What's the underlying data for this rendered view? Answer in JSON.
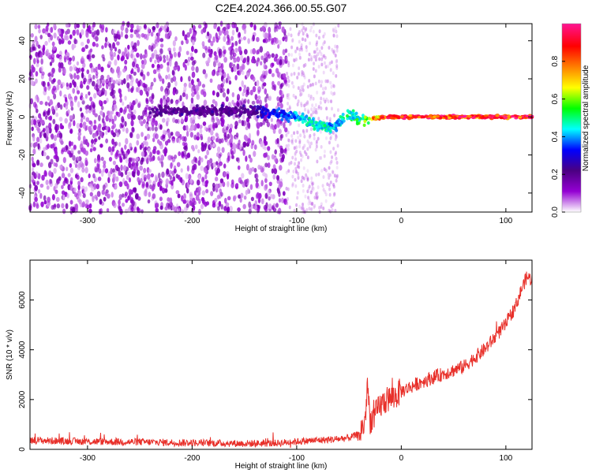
{
  "figure": {
    "title": "C2E4.2024.366.00.55.G07"
  },
  "chart_data": [
    {
      "type": "heatmap",
      "xlabel": "Height of straight line (km)",
      "ylabel": "Frequency (Hz)",
      "xlim": [
        -355,
        125
      ],
      "ylim": [
        -50,
        49
      ],
      "x_ticks": [
        -300,
        -200,
        -100,
        0,
        100
      ],
      "x_tick_labels": [
        "-300",
        "-200",
        "-100",
        "0",
        "100"
      ],
      "y_ticks": [
        -40,
        -20,
        0,
        20,
        40
      ],
      "y_tick_labels": [
        "-40",
        "-20",
        "0",
        "20",
        "40"
      ],
      "colorbar": {
        "label": "Normalized spectral amplitude",
        "range": [
          0,
          1
        ],
        "ticks": [
          0.0,
          0.2,
          0.4,
          0.6,
          0.8
        ],
        "tick_labels": [
          "0.0",
          "0.2",
          "0.4",
          "0.6",
          "0.8"
        ],
        "colormap": [
          "#ffffff",
          "#9400d3",
          "#4b0082",
          "#0000ff",
          "#00ffff",
          "#00ff00",
          "#ffff00",
          "#ff7f00",
          "#ff0000",
          "#ff1493"
        ]
      },
      "features": [
        {
          "name": "noise_field",
          "x_range": [
            -355,
            -110
          ],
          "freq_range": [
            -50,
            49
          ],
          "amplitude": 0.15
        },
        {
          "name": "sparse_noise",
          "x_range": [
            -110,
            -60
          ],
          "freq_range": [
            -50,
            49
          ],
          "amplitude": 0.06
        },
        {
          "name": "signal_band",
          "x": [
            -140,
            -120,
            -100,
            -80,
            -65,
            -50,
            -40,
            -30,
            -20,
            0,
            50,
            125
          ],
          "freq": [
            3,
            2,
            0,
            -4,
            -6,
            2,
            -2,
            -1,
            0,
            0,
            0,
            0
          ],
          "amplitude": [
            0.3,
            0.35,
            0.45,
            0.5,
            0.45,
            0.5,
            0.55,
            0.7,
            0.9,
            0.95,
            0.95,
            0.95
          ]
        }
      ]
    },
    {
      "type": "line",
      "xlabel": "Height of straight line (km)",
      "ylabel": "SNR (10 * v/v)",
      "xlim": [
        -355,
        125
      ],
      "ylim": [
        0,
        7600
      ],
      "x_ticks": [
        -300,
        -200,
        -100,
        0,
        100
      ],
      "x_tick_labels": [
        "-300",
        "-200",
        "-100",
        "0",
        "100"
      ],
      "y_ticks": [
        0,
        2000,
        4000,
        6000
      ],
      "y_tick_labels": [
        "0",
        "2000",
        "4000",
        "6000"
      ],
      "series": [
        {
          "color": "#e8302a",
          "x": [
            -355,
            -300,
            -250,
            -200,
            -150,
            -120,
            -100,
            -80,
            -60,
            -50,
            -40,
            -35,
            -32,
            -30,
            -25,
            -20,
            -15,
            -10,
            -5,
            0,
            10,
            20,
            40,
            60,
            80,
            100,
            110,
            115,
            120,
            125
          ],
          "y": [
            350,
            300,
            280,
            250,
            220,
            230,
            300,
            350,
            400,
            450,
            600,
            1000,
            2500,
            1100,
            1300,
            1700,
            1900,
            2000,
            2100,
            2300,
            2500,
            2700,
            3000,
            3300,
            4000,
            5000,
            5800,
            6400,
            6900,
            6800
          ]
        }
      ]
    }
  ]
}
